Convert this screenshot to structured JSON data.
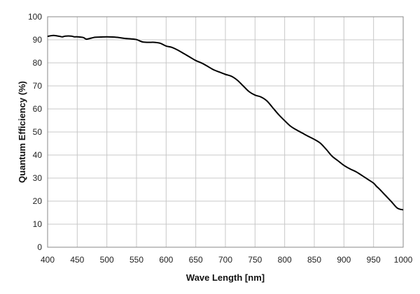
{
  "chart_data": {
    "type": "line",
    "xlabel": "Wave Length [nm]",
    "ylabel": "Quantum Efficiency (%)",
    "xlim": [
      400,
      1000
    ],
    "ylim": [
      0,
      100
    ],
    "x_ticks": [
      "400",
      "450",
      "500",
      "550",
      "600",
      "650",
      "700",
      "750",
      "800",
      "850",
      "900",
      "950",
      "1000"
    ],
    "y_ticks": [
      "0",
      "10",
      "20",
      "30",
      "40",
      "50",
      "60",
      "70",
      "80",
      "90",
      "100"
    ],
    "grid": true,
    "colors": {
      "line": "#000000",
      "grid": "#c8c8c8",
      "frame": "#888888"
    },
    "series": [
      {
        "x": [
          400,
          410,
          420,
          425,
          430,
          440,
          445,
          450,
          460,
          465,
          470,
          480,
          490,
          500,
          510,
          520,
          530,
          540,
          550,
          560,
          570,
          580,
          590,
          600,
          610,
          620,
          630,
          640,
          650,
          660,
          670,
          680,
          690,
          700,
          710,
          720,
          730,
          740,
          750,
          760,
          770,
          780,
          790,
          800,
          810,
          820,
          830,
          840,
          850,
          860,
          870,
          880,
          890,
          900,
          910,
          920,
          930,
          940,
          950,
          955,
          960,
          970,
          980,
          990,
          1000
        ],
        "y": [
          91.5,
          91.9,
          91.5,
          91.3,
          91.6,
          91.6,
          91.3,
          91.3,
          91.0,
          90.3,
          90.5,
          91.1,
          91.2,
          91.3,
          91.2,
          91.0,
          90.6,
          90.4,
          90.1,
          89.1,
          88.9,
          88.9,
          88.5,
          87.3,
          86.7,
          85.5,
          84.0,
          82.5,
          81.0,
          79.9,
          78.5,
          77.0,
          76.0,
          75.0,
          74.2,
          72.5,
          70.0,
          67.5,
          66.0,
          65.2,
          63.5,
          60.5,
          57.5,
          54.9,
          52.5,
          50.9,
          49.5,
          48.1,
          46.8,
          45.2,
          42.5,
          39.5,
          37.5,
          35.5,
          34.0,
          32.8,
          31.2,
          29.5,
          27.8,
          26.4,
          25.2,
          22.5,
          19.8,
          17.0,
          16.2
        ]
      }
    ]
  }
}
